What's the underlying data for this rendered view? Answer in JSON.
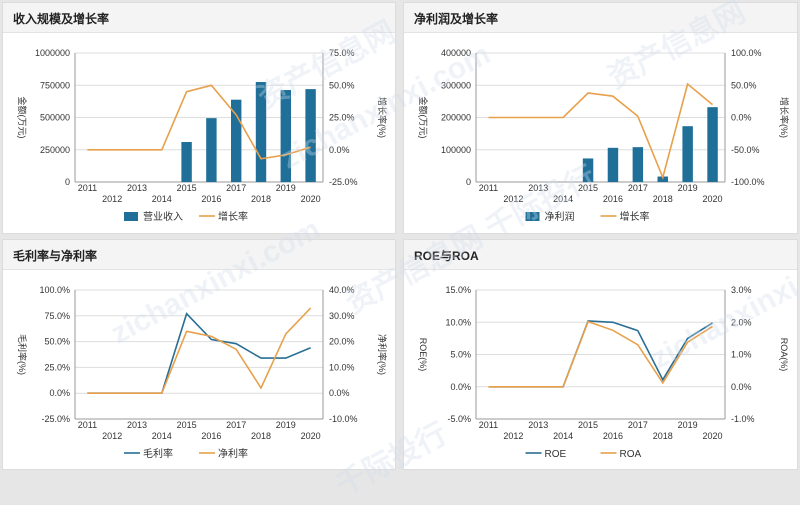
{
  "colors": {
    "bar": "#1f6f99",
    "line_orange": "#e8a04b",
    "line_blue": "#2a6e94",
    "grid": "#dddddd"
  },
  "watermarks": [
    "资产信息网",
    "zichanxinxi.com",
    "资产信息网 千际投行",
    "zichanxinxi.com",
    "资产信息网",
    "zichanxinxi.com",
    "千际投行"
  ],
  "panels": [
    {
      "title": "收入规模及增长率"
    },
    {
      "title": "净利润及增长率"
    },
    {
      "title": "毛利率与净利率"
    },
    {
      "title": "ROE与ROA"
    }
  ],
  "chart_data": [
    {
      "type": "bar+line",
      "title": "收入规模及增长率",
      "x": [
        "2011",
        "2012",
        "2013",
        "2014",
        "2015",
        "2016",
        "2017",
        "2018",
        "2019",
        "2020"
      ],
      "y_left": {
        "label": "金额(万元)",
        "ticks": [
          0,
          250000,
          500000,
          750000,
          1000000
        ],
        "range": [
          0,
          1000000
        ]
      },
      "y_right": {
        "label": "增长率(%)",
        "ticks": [
          "-25.0%",
          "0.0%",
          "25.0%",
          "50.0%",
          "75.0%"
        ],
        "range": [
          -25,
          75
        ]
      },
      "series": [
        {
          "name": "营业收入",
          "kind": "bar",
          "axis": "left",
          "values": [
            null,
            null,
            null,
            null,
            310000,
            495000,
            638000,
            775000,
            713000,
            720000
          ]
        },
        {
          "name": "增长率",
          "kind": "line",
          "axis": "right",
          "values": [
            0,
            0,
            0,
            0,
            45,
            50,
            27,
            -7,
            -4,
            2
          ]
        }
      ],
      "legend": "bottom"
    },
    {
      "type": "bar+line",
      "title": "净利润及增长率",
      "x": [
        "2011",
        "2012",
        "2013",
        "2014",
        "2015",
        "2016",
        "2017",
        "2018",
        "2019",
        "2020"
      ],
      "y_left": {
        "label": "金额(万元)",
        "ticks": [
          0,
          100000,
          200000,
          300000,
          400000
        ],
        "range": [
          0,
          400000
        ]
      },
      "y_right": {
        "label": "增长率(%)",
        "ticks": [
          "-100.0%",
          "-50.0%",
          "0.0%",
          "50.0%",
          "100.0%"
        ],
        "range": [
          -100,
          100
        ]
      },
      "series": [
        {
          "name": "净利润",
          "kind": "bar",
          "axis": "left",
          "values": [
            null,
            null,
            null,
            null,
            73000,
            106000,
            108000,
            17000,
            173000,
            232000
          ]
        },
        {
          "name": "增长率",
          "kind": "line",
          "axis": "right",
          "values": [
            0,
            0,
            0,
            0,
            38,
            33,
            2,
            -93,
            52,
            20
          ]
        }
      ],
      "legend": "bottom"
    },
    {
      "type": "line",
      "title": "毛利率与净利率",
      "x": [
        "2011",
        "2012",
        "2013",
        "2014",
        "2015",
        "2016",
        "2017",
        "2018",
        "2019",
        "2020"
      ],
      "y_left": {
        "label": "毛利率(%)",
        "ticks": [
          "-25.0%",
          "0.0%",
          "25.0%",
          "50.0%",
          "75.0%",
          "100.0%"
        ],
        "range": [
          -25,
          100
        ]
      },
      "y_right": {
        "label": "净利率(%)",
        "ticks": [
          "-10.0%",
          "0.0%",
          "10.0%",
          "20.0%",
          "30.0%",
          "40.0%"
        ],
        "range": [
          -10,
          40
        ]
      },
      "series": [
        {
          "name": "毛利率",
          "kind": "line",
          "axis": "left",
          "color": "blue",
          "values": [
            0,
            0,
            0,
            0,
            77,
            52,
            48,
            34,
            34,
            44
          ]
        },
        {
          "name": "净利率",
          "kind": "line",
          "axis": "right",
          "color": "orange",
          "values": [
            0,
            0,
            0,
            0,
            24,
            22,
            17,
            2,
            23,
            33
          ]
        }
      ],
      "legend": "bottom"
    },
    {
      "type": "line",
      "title": "ROE与ROA",
      "x": [
        "2011",
        "2012",
        "2013",
        "2014",
        "2015",
        "2016",
        "2017",
        "2018",
        "2019",
        "2020"
      ],
      "y_left": {
        "label": "ROE(%)",
        "ticks": [
          "-5.0%",
          "0.0%",
          "5.0%",
          "10.0%",
          "15.0%"
        ],
        "range": [
          -5,
          15
        ]
      },
      "y_right": {
        "label": "ROA(%)",
        "ticks": [
          "-1.0%",
          "0.0%",
          "1.0%",
          "2.0%",
          "3.0%"
        ],
        "range": [
          -1,
          3
        ]
      },
      "series": [
        {
          "name": "ROE",
          "kind": "line",
          "axis": "left",
          "color": "blue",
          "values": [
            0,
            0,
            0,
            0,
            10.2,
            10,
            8.7,
            1.1,
            7.5,
            9.9
          ]
        },
        {
          "name": "ROA",
          "kind": "line",
          "axis": "right",
          "color": "orange",
          "values": [
            0,
            0,
            0,
            0,
            2.02,
            1.75,
            1.3,
            0.12,
            1.38,
            1.87
          ]
        }
      ],
      "legend": "bottom"
    }
  ]
}
